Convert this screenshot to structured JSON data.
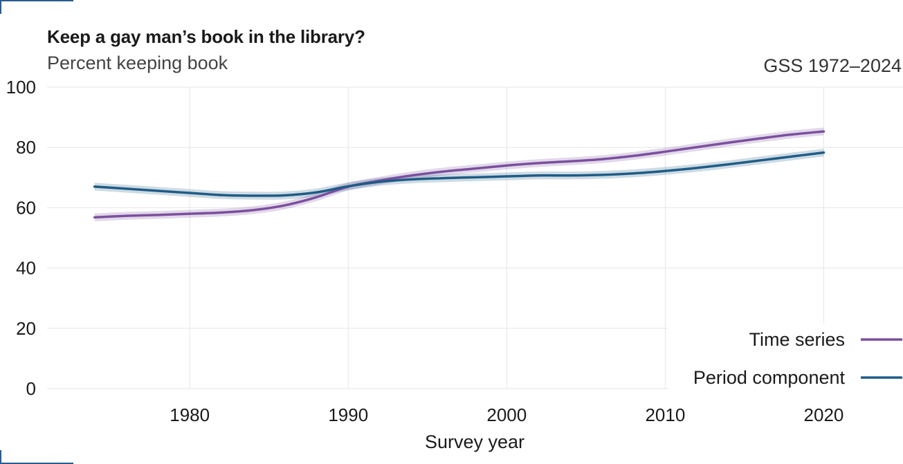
{
  "chart_data": {
    "type": "line",
    "title": "Keep a gay man’s book in the library?",
    "subtitle": "Percent keeping book",
    "caption": "GSS 1972–2024",
    "xlabel": "Survey year",
    "ylabel": "",
    "xlim": [
      1971,
      2025
    ],
    "ylim": [
      0,
      100
    ],
    "x_ticks": [
      1980,
      1990,
      2000,
      2010,
      2020
    ],
    "y_ticks": [
      0,
      20,
      40,
      60,
      80,
      100
    ],
    "grid": true,
    "legend_position": "bottom-right",
    "x": [
      1974,
      1976,
      1978,
      1980,
      1982,
      1984,
      1986,
      1988,
      1990,
      1992,
      1994,
      1996,
      1998,
      2000,
      2002,
      2004,
      2006,
      2008,
      2010,
      2012,
      2014,
      2016,
      2018,
      2020
    ],
    "series": [
      {
        "name": "Time series",
        "color": "#7b4f9e",
        "values": [
          56.8,
          57.3,
          57.6,
          58.0,
          58.4,
          59.2,
          60.8,
          63.5,
          67.0,
          69.0,
          70.7,
          72.0,
          73.0,
          74.0,
          74.8,
          75.4,
          76.1,
          77.2,
          78.6,
          80.1,
          81.6,
          83.0,
          84.3,
          85.3
        ],
        "band": 1.3
      },
      {
        "name": "Period component",
        "color": "#1f5c86",
        "values": [
          67.0,
          66.3,
          65.6,
          64.9,
          64.2,
          64.0,
          64.1,
          65.1,
          67.1,
          68.6,
          69.4,
          69.8,
          70.1,
          70.4,
          70.7,
          70.7,
          70.9,
          71.4,
          72.2,
          73.2,
          74.4,
          75.7,
          77.0,
          78.3
        ],
        "band": 1.3
      }
    ]
  }
}
